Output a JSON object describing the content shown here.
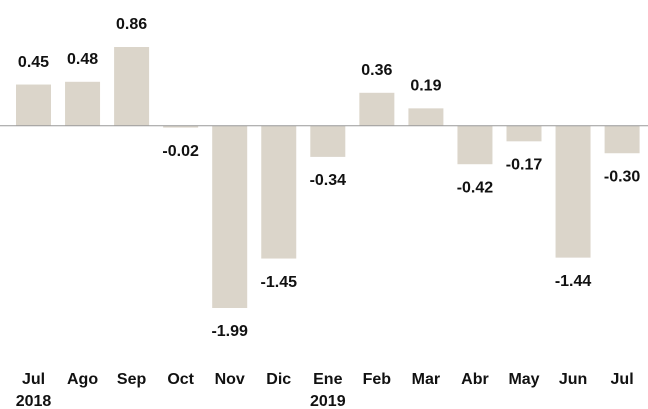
{
  "chart_data": {
    "type": "bar",
    "categories": [
      "Jul",
      "Ago",
      "Sep",
      "Oct",
      "Nov",
      "Dic",
      "Ene",
      "Feb",
      "Mar",
      "Abr",
      "May",
      "Jun",
      "Jul"
    ],
    "category_groups": [
      {
        "label": "2018",
        "category": 0
      },
      {
        "label": "2019",
        "category": 6
      }
    ],
    "values": [
      0.45,
      0.48,
      0.86,
      -0.02,
      -1.99,
      -1.45,
      -0.34,
      0.36,
      0.19,
      -0.42,
      -0.17,
      -1.44,
      -0.3
    ],
    "value_labels": [
      "0.45",
      "0.48",
      "0.86",
      "-0.02",
      "-1.99",
      "-1.45",
      "-0.34",
      "0.36",
      "0.19",
      "-0.42",
      "-0.17",
      "-1.44",
      "-0.30"
    ],
    "color": "#dbd5ca"
  }
}
